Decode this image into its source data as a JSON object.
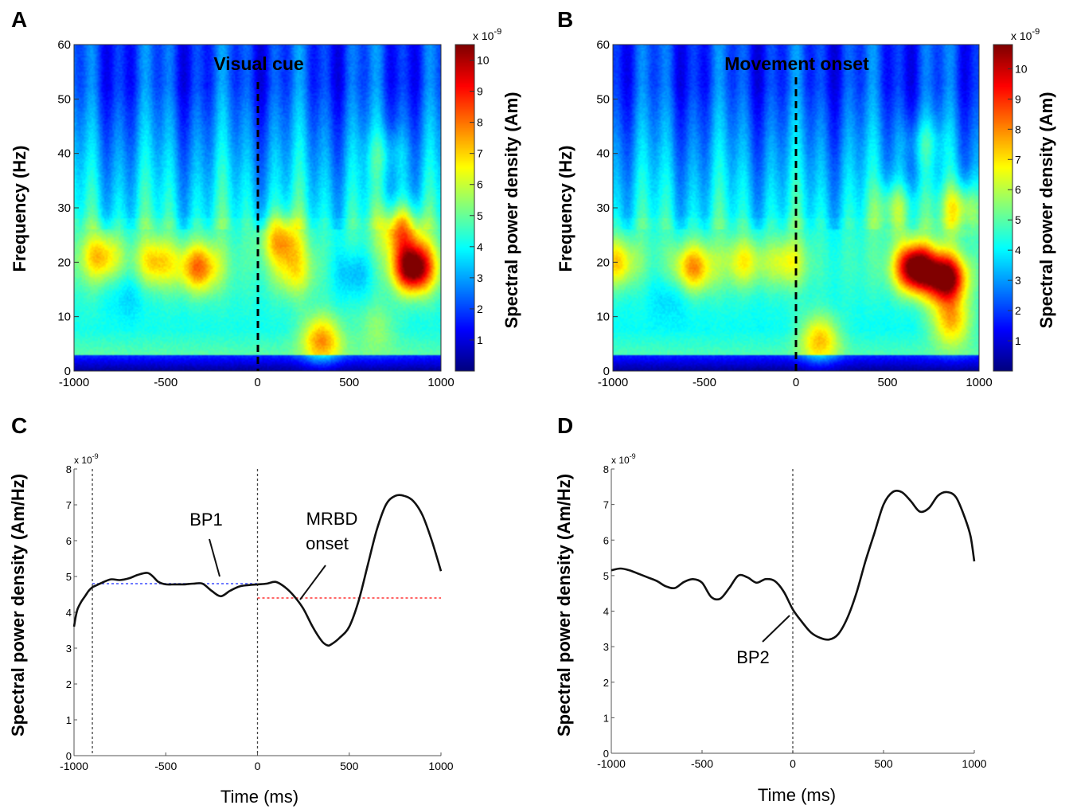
{
  "figure": {
    "panel_labels": [
      "A",
      "B",
      "C",
      "D"
    ]
  },
  "chart_data": [
    {
      "panel": "A",
      "type": "heatmap",
      "annotation": "Visual cue",
      "xlabel": "",
      "ylabel": "Frequency (Hz)",
      "colorbar_label": "Spectral power density (Am)",
      "colorbar_exponent": "x 10",
      "colorbar_exponent_power": "-9",
      "xlim": [
        -1000,
        1000
      ],
      "ylim": [
        0,
        60
      ],
      "zlim": [
        0,
        10.5
      ],
      "xticks": [
        "-1000",
        "-500",
        "0",
        "500",
        "1000"
      ],
      "yticks": [
        "0",
        "10",
        "20",
        "30",
        "40",
        "50",
        "60"
      ],
      "cticks": [
        "1",
        "2",
        "3",
        "4",
        "5",
        "6",
        "7",
        "8",
        "9",
        "10"
      ],
      "vline_x": 0,
      "colormap": "jet",
      "baseline_level": 4.0,
      "blobs": [
        {
          "t": 850,
          "f": 19,
          "value": 11.0
        },
        {
          "t": 780,
          "f": 26,
          "value": 7.5
        },
        {
          "t": -320,
          "f": 19,
          "value": 7.6
        },
        {
          "t": -550,
          "f": 20,
          "value": 6.5
        },
        {
          "t": -850,
          "f": 21,
          "value": 6.8
        },
        {
          "t": 130,
          "f": 24,
          "value": 7.0
        },
        {
          "t": 350,
          "f": 6,
          "value": 7.3
        },
        {
          "t": 200,
          "f": 18,
          "value": 5.8
        },
        {
          "t": 650,
          "f": 8,
          "value": 5.2
        },
        {
          "t": 700,
          "f": 40,
          "value": 5.0
        },
        {
          "t": 530,
          "f": 18,
          "value": 2.6
        },
        {
          "t": -700,
          "f": 14,
          "value": 3.2
        }
      ]
    },
    {
      "panel": "B",
      "type": "heatmap",
      "annotation": "Movement onset",
      "xlabel": "",
      "ylabel": "Frequency (Hz)",
      "colorbar_label": "Spectral power density (Am)",
      "colorbar_exponent": "x 10",
      "colorbar_exponent_power": "-9",
      "xlim": [
        -1000,
        1000
      ],
      "ylim": [
        0,
        60
      ],
      "zlim": [
        0,
        10.8
      ],
      "xticks": [
        "-1000",
        "-500",
        "0",
        "500",
        "1000"
      ],
      "yticks": [
        "0",
        "10",
        "20",
        "30",
        "40",
        "50",
        "60"
      ],
      "cticks": [
        "1",
        "2",
        "3",
        "4",
        "5",
        "6",
        "7",
        "8",
        "9",
        "10"
      ],
      "vline_x": 0,
      "colormap": "jet",
      "baseline_level": 4.0,
      "blobs": [
        {
          "t": 650,
          "f": 19,
          "value": 11.2
        },
        {
          "t": 820,
          "f": 17,
          "value": 10.8
        },
        {
          "t": 850,
          "f": 9,
          "value": 7.2
        },
        {
          "t": 900,
          "f": 30,
          "value": 6.8
        },
        {
          "t": 550,
          "f": 30,
          "value": 6.2
        },
        {
          "t": -560,
          "f": 19,
          "value": 7.5
        },
        {
          "t": -980,
          "f": 20,
          "value": 6.8
        },
        {
          "t": -280,
          "f": 20,
          "value": 6.2
        },
        {
          "t": 130,
          "f": 6,
          "value": 7.0
        },
        {
          "t": -50,
          "f": 20,
          "value": 6.0
        },
        {
          "t": 700,
          "f": 42,
          "value": 5.2
        },
        {
          "t": -700,
          "f": 14,
          "value": 3.2
        }
      ]
    },
    {
      "panel": "C",
      "type": "line",
      "xlabel": "Time (ms)",
      "ylabel": "Spectral power density (Am/Hz)",
      "y_exponent": "x 10",
      "y_exponent_power": "-9",
      "xlim": [
        -1000,
        1000
      ],
      "ylim": [
        0,
        8
      ],
      "xticks": [
        "-1000",
        "-500",
        "0",
        "500",
        "1000"
      ],
      "yticks": [
        "0",
        "1",
        "2",
        "3",
        "4",
        "5",
        "6",
        "7",
        "8"
      ],
      "x": [
        -1000,
        -990,
        -980,
        -960,
        -940,
        -920,
        -900,
        -880,
        -850,
        -800,
        -750,
        -700,
        -650,
        -600,
        -570,
        -540,
        -500,
        -450,
        -400,
        -350,
        -300,
        -250,
        -200,
        -150,
        -100,
        -50,
        0,
        50,
        100,
        150,
        200,
        250,
        300,
        350,
        380,
        400,
        450,
        500,
        550,
        600,
        650,
        700,
        750,
        800,
        850,
        900,
        950,
        1000
      ],
      "y": [
        3.6,
        3.9,
        4.1,
        4.3,
        4.45,
        4.6,
        4.7,
        4.75,
        4.82,
        4.92,
        4.9,
        4.95,
        5.05,
        5.1,
        5.0,
        4.85,
        4.78,
        4.78,
        4.78,
        4.8,
        4.8,
        4.6,
        4.45,
        4.6,
        4.72,
        4.76,
        4.78,
        4.8,
        4.85,
        4.7,
        4.45,
        4.1,
        3.6,
        3.2,
        3.08,
        3.1,
        3.3,
        3.6,
        4.3,
        5.3,
        6.3,
        7.0,
        7.25,
        7.25,
        7.1,
        6.7,
        6.0,
        5.15
      ],
      "vlines": [
        -900,
        0
      ],
      "hline_blue": {
        "y": 4.8,
        "x_from": -900,
        "x_to": 0
      },
      "hline_red": {
        "y": 4.4,
        "x_from": 0,
        "x_to": 1000
      },
      "annotations": [
        "BP1",
        "MRBD",
        "onset"
      ]
    },
    {
      "panel": "D",
      "type": "line",
      "xlabel": "Time (ms)",
      "ylabel": "Spectral power density (Am/Hz)",
      "y_exponent": "x 10",
      "y_exponent_power": "-9",
      "xlim": [
        -1000,
        1000
      ],
      "ylim": [
        0,
        8
      ],
      "xticks": [
        "-1000",
        "-500",
        "0",
        "500",
        "1000"
      ],
      "yticks": [
        "0",
        "1",
        "2",
        "3",
        "4",
        "5",
        "6",
        "7",
        "8"
      ],
      "x": [
        -1000,
        -950,
        -900,
        -850,
        -800,
        -750,
        -700,
        -650,
        -600,
        -550,
        -500,
        -450,
        -400,
        -350,
        -300,
        -250,
        -200,
        -150,
        -100,
        -50,
        0,
        50,
        100,
        150,
        200,
        250,
        300,
        350,
        400,
        450,
        500,
        550,
        600,
        650,
        700,
        750,
        800,
        850,
        900,
        950,
        980,
        1000
      ],
      "y": [
        5.15,
        5.2,
        5.15,
        5.05,
        4.95,
        4.85,
        4.7,
        4.65,
        4.82,
        4.9,
        4.8,
        4.4,
        4.35,
        4.65,
        5.0,
        4.95,
        4.8,
        4.9,
        4.85,
        4.55,
        4.05,
        3.7,
        3.4,
        3.25,
        3.2,
        3.35,
        3.8,
        4.5,
        5.4,
        6.2,
        7.0,
        7.35,
        7.35,
        7.1,
        6.8,
        6.9,
        7.25,
        7.35,
        7.2,
        6.6,
        6.1,
        5.4
      ],
      "vlines": [
        0
      ],
      "annotations": [
        "BP2"
      ]
    }
  ]
}
